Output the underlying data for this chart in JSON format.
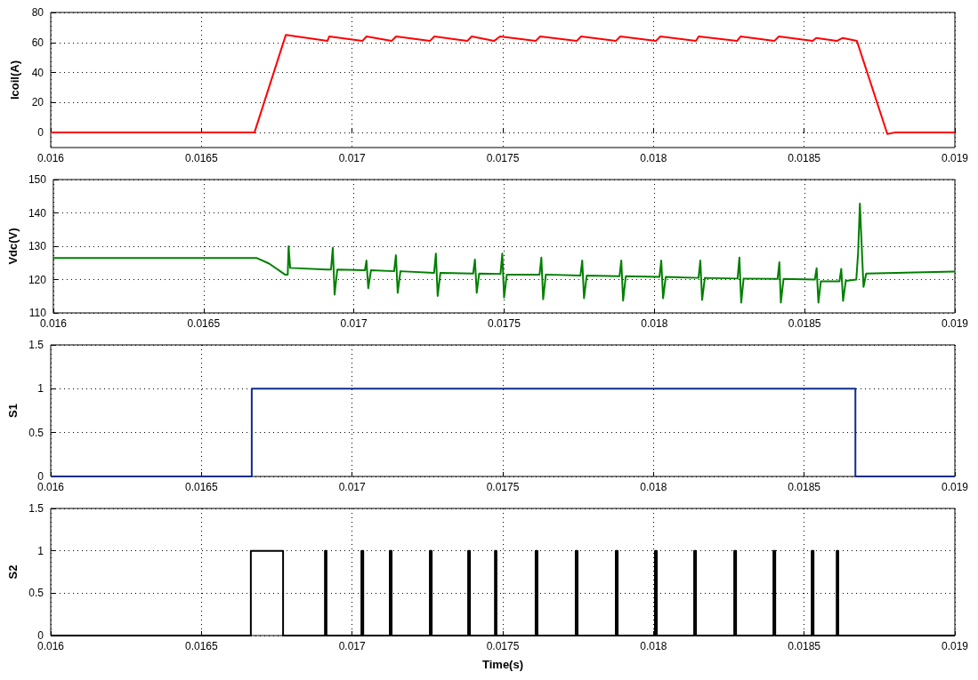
{
  "chart_data": [
    {
      "type": "line",
      "ylabel": "Icoil(A)",
      "color": "#ff0000",
      "xlim": [
        0.016,
        0.019
      ],
      "xticks": [
        0.016,
        0.0165,
        0.017,
        0.0175,
        0.018,
        0.0185,
        0.019
      ],
      "ylim": [
        -10,
        80
      ],
      "yticks": [
        0,
        20,
        40,
        60,
        80
      ],
      "grid": true,
      "x": [
        0.016,
        0.016676,
        0.01678,
        0.016918,
        0.016924,
        0.017034,
        0.017048,
        0.017131,
        0.017146,
        0.017258,
        0.017273,
        0.017382,
        0.017397,
        0.017471,
        0.017491,
        0.017609,
        0.017624,
        0.017745,
        0.01776,
        0.017875,
        0.01789,
        0.018008,
        0.018023,
        0.018141,
        0.01815,
        0.018277,
        0.018289,
        0.018401,
        0.018416,
        0.018528,
        0.01854,
        0.018608,
        0.018628,
        0.018675,
        0.018776,
        0.0188,
        0.019
      ],
      "values": [
        0,
        0,
        65,
        61,
        64,
        61,
        64,
        61,
        64,
        61,
        64,
        61,
        64,
        61,
        64,
        61,
        64,
        61,
        64,
        61,
        64,
        61,
        64,
        61,
        64,
        61,
        64,
        61,
        64,
        61,
        63,
        61,
        63,
        61,
        -1,
        0,
        0
      ]
    },
    {
      "type": "line",
      "ylabel": "Vdc(V)",
      "color": "#008000",
      "xlim": [
        0.016,
        0.019
      ],
      "xticks": [
        0.016,
        0.0165,
        0.017,
        0.0175,
        0.018,
        0.0185,
        0.019
      ],
      "ylim": [
        110,
        150
      ],
      "yticks": [
        110,
        120,
        130,
        140,
        150
      ],
      "grid": true,
      "x": [
        0.016,
        0.016676,
        0.016718,
        0.016771,
        0.01678,
        0.016783,
        0.016788,
        0.01691,
        0.016924,
        0.01693,
        0.016936,
        0.016945,
        0.017037,
        0.017042,
        0.017048,
        0.017057,
        0.017134,
        0.01714,
        0.017146,
        0.017155,
        0.017267,
        0.017273,
        0.017279,
        0.017288,
        0.017397,
        0.017403,
        0.017409,
        0.017417,
        0.017488,
        0.017494,
        0.0175,
        0.017509,
        0.017618,
        0.017624,
        0.01763,
        0.017639,
        0.017754,
        0.01776,
        0.017766,
        0.017775,
        0.017884,
        0.01789,
        0.017896,
        0.017905,
        0.018017,
        0.018023,
        0.018029,
        0.018038,
        0.018147,
        0.018153,
        0.018159,
        0.018168,
        0.018277,
        0.018283,
        0.018289,
        0.018297,
        0.01841,
        0.018416,
        0.018421,
        0.01843,
        0.018534,
        0.01854,
        0.018546,
        0.018554,
        0.018616,
        0.018622,
        0.018628,
        0.018637,
        0.018672,
        0.018678,
        0.018684,
        0.01869,
        0.018696,
        0.018705,
        0.019
      ],
      "values": [
        126.5,
        126.5,
        124.8,
        121.5,
        121.5,
        130,
        123.5,
        123,
        123,
        129.5,
        115.5,
        123,
        122.8,
        125.7,
        117.4,
        122.8,
        122.5,
        127.3,
        116,
        122.5,
        122,
        127.8,
        115.1,
        122,
        121.8,
        126,
        116,
        121.8,
        121.7,
        127.8,
        114.6,
        121.5,
        121.5,
        126.6,
        114.1,
        121.5,
        121.2,
        125.7,
        114.4,
        121.2,
        121,
        125.7,
        113.7,
        121,
        120.8,
        125.7,
        114.4,
        120.8,
        120.5,
        125.7,
        113.9,
        120.5,
        120.3,
        126.6,
        113.1,
        120.3,
        120.2,
        125.2,
        113.1,
        120.2,
        120,
        123.4,
        113.1,
        119.5,
        119.5,
        123.2,
        113.6,
        119.6,
        120,
        128,
        142.8,
        130,
        117.8,
        121.8,
        122.4
      ]
    },
    {
      "type": "step",
      "ylabel": "S1",
      "color": "#0f2d8c",
      "xlim": [
        0.016,
        0.019
      ],
      "xticks": [
        0.016,
        0.0165,
        0.017,
        0.0175,
        0.018,
        0.0185,
        0.019
      ],
      "ylim": [
        0,
        1.5
      ],
      "yticks": [
        0,
        0.5,
        1,
        1.5
      ],
      "grid": true,
      "x": [
        0.016,
        0.016667,
        0.01867,
        0.019
      ],
      "values": [
        0,
        1,
        0,
        0
      ]
    },
    {
      "type": "step",
      "ylabel": "S2",
      "xlabel": "Time(s)",
      "color": "#000000",
      "xlim": [
        0.016,
        0.019
      ],
      "xticks": [
        0.016,
        0.0165,
        0.017,
        0.0175,
        0.018,
        0.0185,
        0.019
      ],
      "ylim": [
        0,
        1.5
      ],
      "yticks": [
        0,
        0.5,
        1,
        1.5
      ],
      "grid": true,
      "x": [
        0.016,
        0.016664,
        0.016771,
        0.01691,
        0.016915,
        0.017031,
        0.017037,
        0.017125,
        0.017131,
        0.017258,
        0.017264,
        0.017385,
        0.017391,
        0.017474,
        0.017479,
        0.017609,
        0.017615,
        0.017742,
        0.017748,
        0.017875,
        0.017881,
        0.018005,
        0.018011,
        0.018135,
        0.018141,
        0.018268,
        0.018274,
        0.018398,
        0.018404,
        0.018525,
        0.018531,
        0.018608,
        0.018613,
        0.019
      ],
      "values": [
        0,
        1,
        0,
        1,
        0,
        1,
        0,
        1,
        0,
        1,
        0,
        1,
        0,
        1,
        0,
        1,
        0,
        1,
        0,
        1,
        0,
        1,
        0,
        1,
        0,
        1,
        0,
        1,
        0,
        1,
        0,
        1,
        0,
        0
      ]
    }
  ]
}
